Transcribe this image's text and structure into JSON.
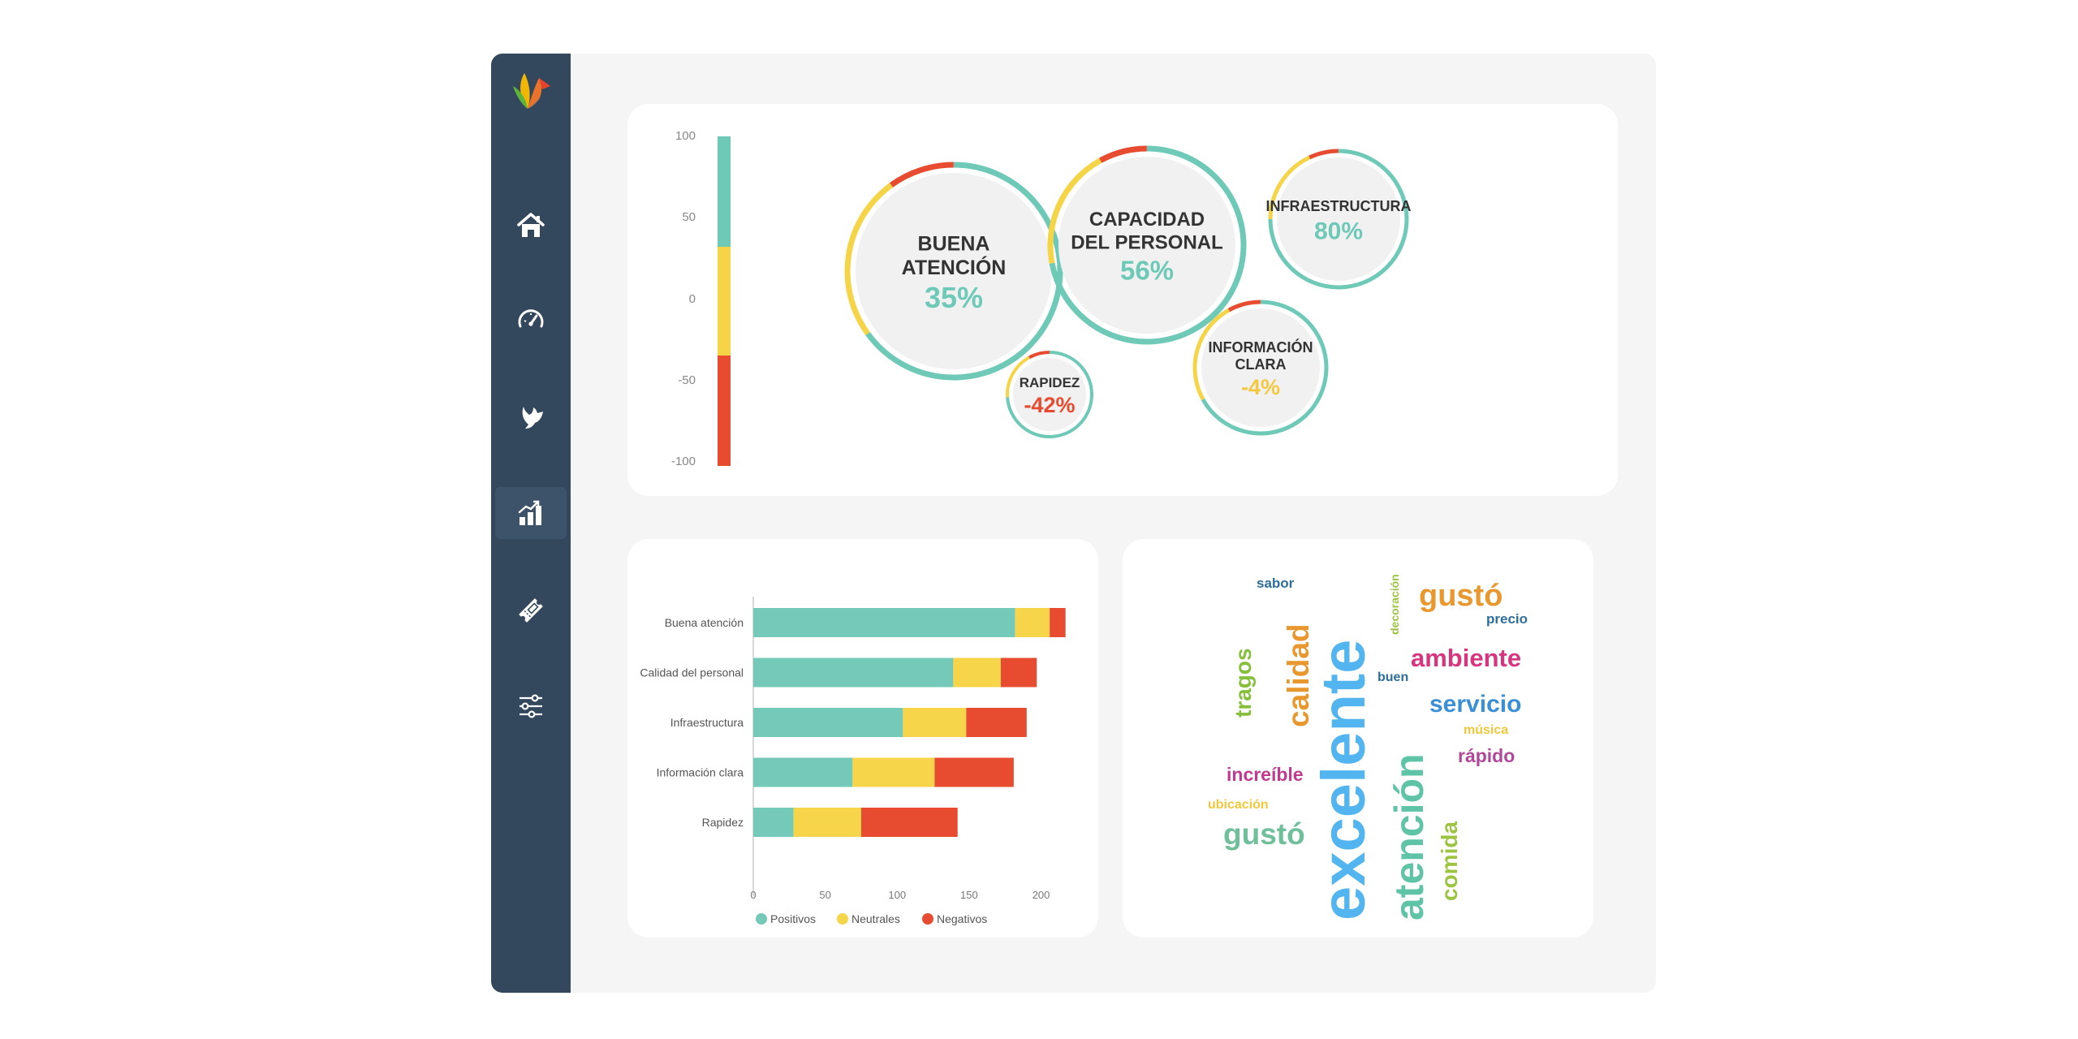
{
  "sidebar": {
    "items": [
      {
        "icon": "home-icon",
        "active": false
      },
      {
        "icon": "speedometer-icon",
        "active": false
      },
      {
        "icon": "bird-icon",
        "active": false
      },
      {
        "icon": "bar-chart-icon",
        "active": true
      },
      {
        "icon": "ticket-icon",
        "active": false
      },
      {
        "icon": "sliders-icon",
        "active": false
      }
    ]
  },
  "sentiment_scale": {
    "ticks": [
      "100",
      "50",
      "0",
      "-50",
      "-100"
    ],
    "colors": {
      "positive": "#6ec9b7",
      "neutral": "#f5d547",
      "negative": "#e84c30"
    }
  },
  "bubbles": [
    {
      "lines": [
        "BUENA",
        "ATENCIÓN"
      ],
      "value": "35%",
      "value_color": "#6ec9b7"
    },
    {
      "lines": [
        "CAPACIDAD",
        "DEL PERSONAL"
      ],
      "value": "56%",
      "value_color": "#6ec9b7"
    },
    {
      "lines": [
        "INFRAESTRUCTURA"
      ],
      "value": "80%",
      "value_color": "#6ec9b7"
    },
    {
      "lines": [
        "INFORMACIÓN",
        "CLARA"
      ],
      "value": "-4%",
      "value_color": "#f5c842"
    },
    {
      "lines": [
        "RAPIDEZ"
      ],
      "value": "-42%",
      "value_color": "#e84c30"
    }
  ],
  "chart_data": {
    "type": "bar",
    "orientation": "horizontal",
    "stacked": true,
    "categories": [
      "Buena atención",
      "Calidad del personal",
      "Infraestructura",
      "Información clara",
      "Rapidez"
    ],
    "series": [
      {
        "name": "Positivos",
        "color": "#74c9b8",
        "values": [
          182,
          139,
          104,
          69,
          28
        ]
      },
      {
        "name": "Neutrales",
        "color": "#f7d54b",
        "values": [
          24,
          33,
          44,
          57,
          47
        ]
      },
      {
        "name": "Negativos",
        "color": "#e84c30",
        "values": [
          11,
          25,
          42,
          55,
          67
        ]
      }
    ],
    "xticks": [
      "0",
      "50",
      "100",
      "150",
      "200"
    ],
    "xlim": [
      0,
      220
    ],
    "legend": "bottom"
  },
  "wordcloud": [
    {
      "text": "excelente",
      "color": "#52b5f0"
    },
    {
      "text": "atención",
      "color": "#5fc4a6"
    },
    {
      "text": "gustó",
      "color": "#e8982e"
    },
    {
      "text": "ambiente",
      "color": "#d8357f"
    },
    {
      "text": "servicio",
      "color": "#3a8fd6"
    },
    {
      "text": "calidad",
      "color": "#e8982e"
    },
    {
      "text": "tragos",
      "color": "#86bf3c"
    },
    {
      "text": "increíble",
      "color": "#c23a90"
    },
    {
      "text": "gustó",
      "color": "#6fbf9a"
    },
    {
      "text": "comida",
      "color": "#9cc440"
    },
    {
      "text": "rápido",
      "color": "#b2479a"
    },
    {
      "text": "sabor",
      "color": "#2d6e9a"
    },
    {
      "text": "precio",
      "color": "#2d6e9a"
    },
    {
      "text": "buen",
      "color": "#2d6e9a"
    },
    {
      "text": "decoración",
      "color": "#9cc440"
    },
    {
      "text": "música",
      "color": "#f0c83c"
    },
    {
      "text": "ubicación",
      "color": "#f0c83c"
    }
  ]
}
